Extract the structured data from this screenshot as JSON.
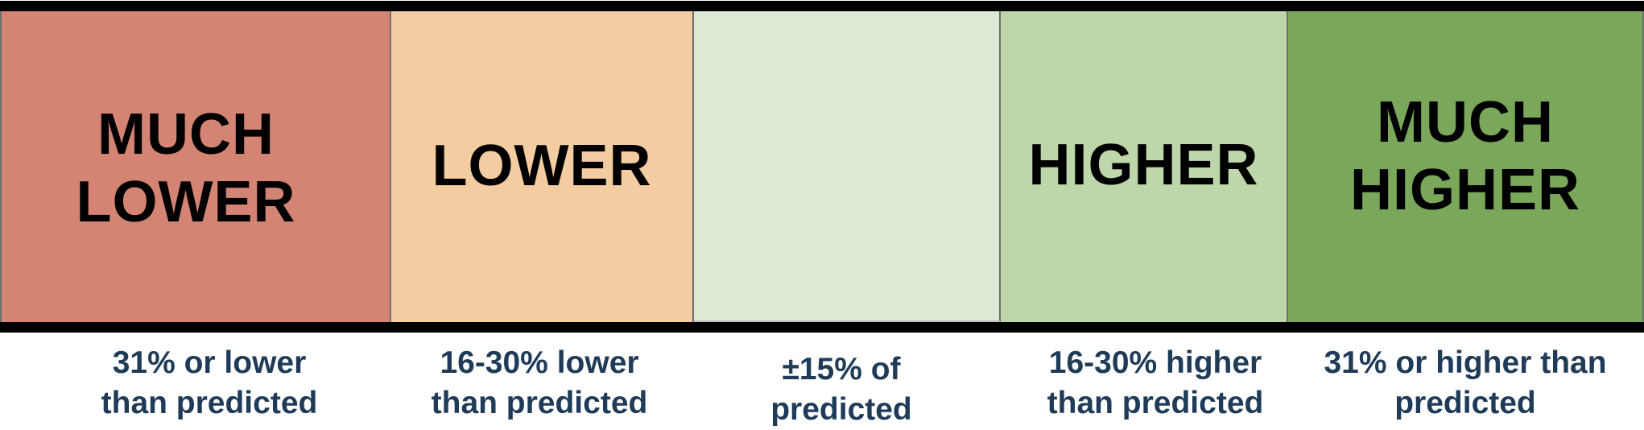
{
  "scale": {
    "segments": [
      {
        "label": "MUCH\nLOWER",
        "caption": "31% or lower\nthan predicted",
        "color": "#d38473"
      },
      {
        "label": "LOWER",
        "caption": "16-30% lower\nthan predicted",
        "color": "#f3cca1"
      },
      {
        "label": "",
        "caption": "±15% of\npredicted",
        "color": "#dde9d5"
      },
      {
        "label": "HIGHER",
        "caption": "16-30% higher\nthan predicted",
        "color": "#bdd7ab"
      },
      {
        "label": "MUCH\nHIGHER",
        "caption": "31% or higher than\npredicted",
        "color": "#7aa75a"
      }
    ]
  }
}
